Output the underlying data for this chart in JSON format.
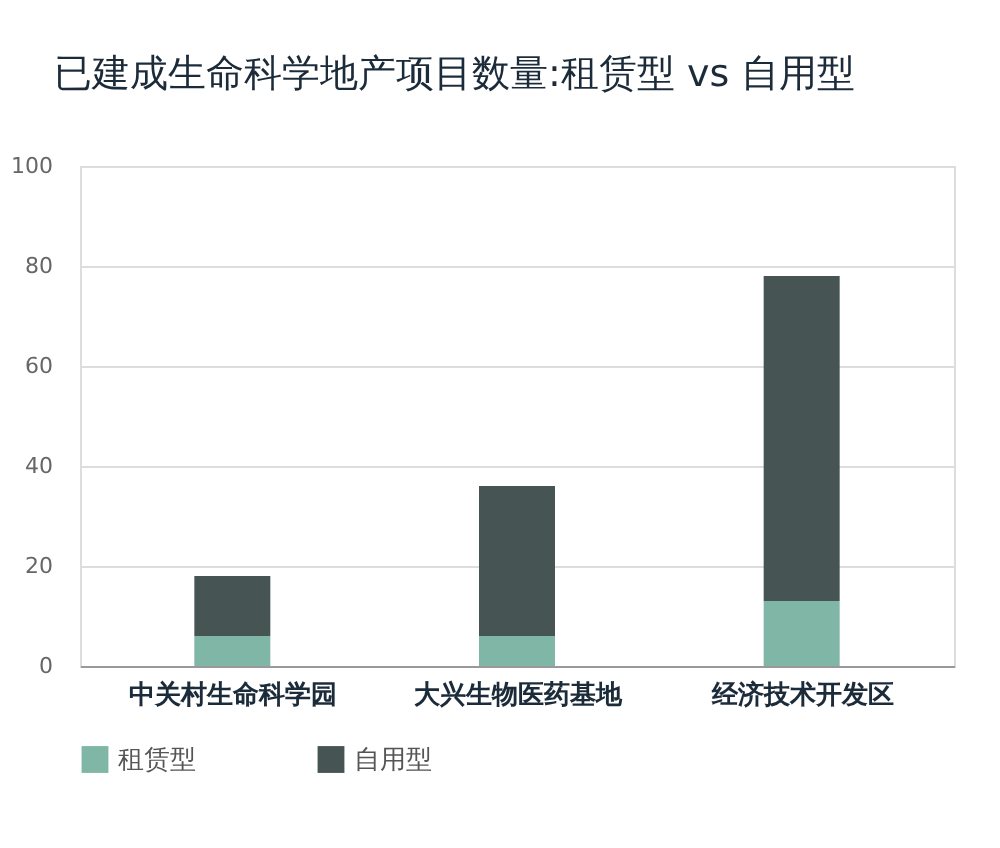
{
  "chart_data": {
    "type": "bar",
    "title": "已建成生命科学地产项目数量:租赁型 vs 自用型",
    "categories": [
      "中关村生命科学园",
      "大兴生物医药基地",
      "经济技术开发区"
    ],
    "stacked": true,
    "series": [
      {
        "name": "租赁型",
        "color": "#7fb6a6",
        "values": [
          6,
          6,
          13
        ]
      },
      {
        "name": "自用型",
        "color": "#465453",
        "values": [
          12,
          30,
          65
        ]
      }
    ],
    "ylim": [
      0,
      100
    ],
    "yticks": [
      0,
      20,
      40,
      60,
      80,
      100
    ],
    "grid": "y",
    "legend": "bottom"
  }
}
